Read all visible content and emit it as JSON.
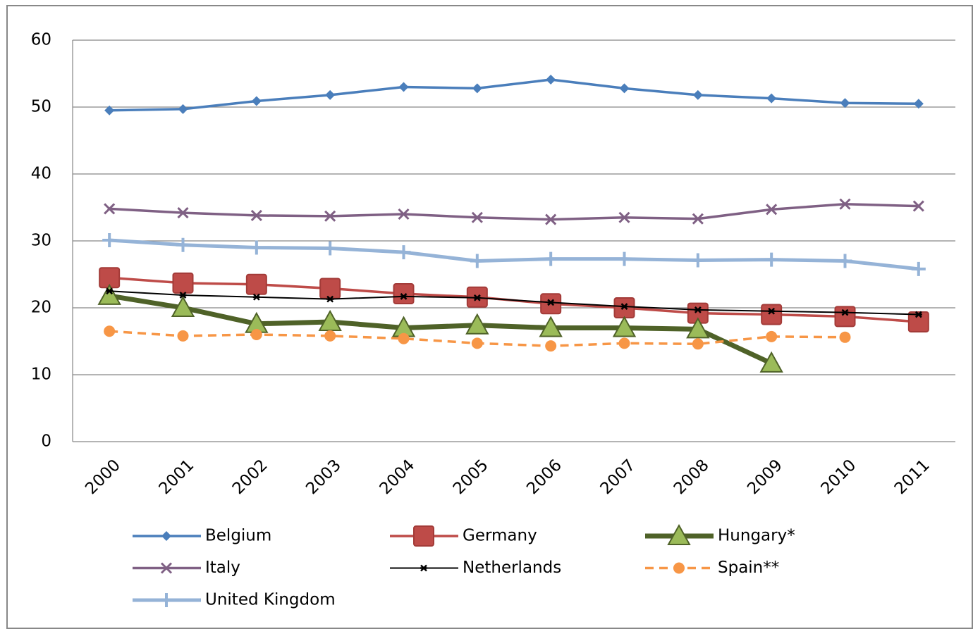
{
  "chart_data": {
    "type": "line",
    "categories": [
      "2000",
      "2001",
      "2002",
      "2003",
      "2004",
      "2005",
      "2006",
      "2007",
      "2008",
      "2009",
      "2010",
      "2011"
    ],
    "ylim": [
      0,
      60
    ],
    "yticks": [
      0,
      10,
      20,
      30,
      40,
      50,
      60
    ],
    "grid": true,
    "legend": "bottom",
    "series": [
      {
        "name": "Belgium",
        "color": "#4a7ebb",
        "marker": "diamond",
        "values": [
          49.5,
          49.7,
          50.9,
          51.8,
          53.0,
          52.8,
          54.1,
          52.8,
          51.8,
          51.3,
          50.6,
          50.5
        ]
      },
      {
        "name": "Germany",
        "color": "#be4b48",
        "marker": "square",
        "values": [
          24.5,
          23.7,
          23.5,
          22.9,
          22.1,
          21.6,
          20.6,
          20.0,
          19.2,
          19.0,
          18.7,
          17.9
        ]
      },
      {
        "name": "Hungary*",
        "color": "#4f6228",
        "marker_color": "#9bbb59",
        "marker": "triangle",
        "values": [
          21.8,
          20.0,
          17.6,
          17.9,
          17.0,
          17.4,
          17.0,
          17.0,
          16.8,
          11.7,
          null,
          null
        ]
      },
      {
        "name": "Italy",
        "color": "#7f6084",
        "marker": "x",
        "values": [
          34.8,
          34.2,
          33.8,
          33.7,
          34.0,
          33.5,
          33.2,
          33.5,
          33.3,
          34.7,
          35.5,
          35.2
        ]
      },
      {
        "name": "Netherlands",
        "color": "#000000",
        "marker": "star",
        "values": [
          22.5,
          21.9,
          21.6,
          21.3,
          21.7,
          21.5,
          20.8,
          20.2,
          19.7,
          19.5,
          19.3,
          19.0
        ]
      },
      {
        "name": "Spain**",
        "color": "#f79646",
        "marker": "circle",
        "dashed": true,
        "values": [
          16.5,
          15.8,
          16.0,
          15.8,
          15.4,
          14.7,
          14.3,
          14.7,
          14.6,
          15.7,
          15.6,
          null
        ]
      },
      {
        "name": "United Kingdom",
        "color": "#95b3d7",
        "marker": "plus",
        "values": [
          30.1,
          29.4,
          29.0,
          28.9,
          28.3,
          27.0,
          27.3,
          27.3,
          27.1,
          27.2,
          27.0,
          25.8
        ]
      }
    ]
  }
}
